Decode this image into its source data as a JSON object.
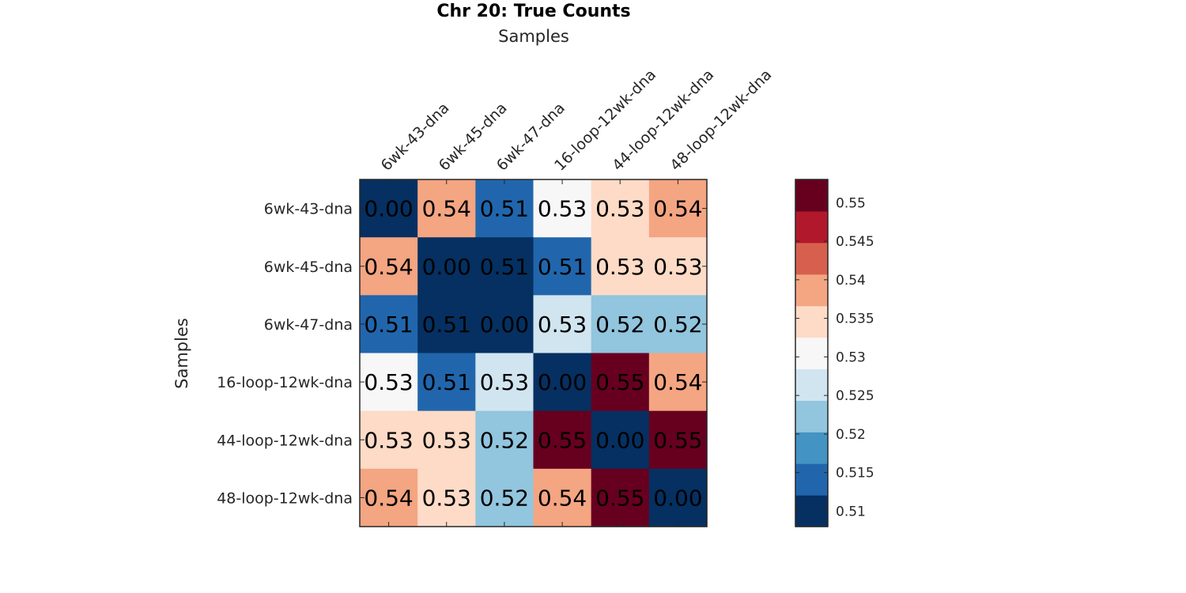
{
  "chart_data": {
    "type": "heatmap",
    "title": "Chr 20: True Counts",
    "xlabel": "Samples",
    "ylabel": "Samples",
    "x_categories": [
      "6wk-43-dna",
      "6wk-45-dna",
      "6wk-47-dna",
      "16-loop-12wk-dna",
      "44-loop-12wk-dna",
      "48-loop-12wk-dna"
    ],
    "y_categories": [
      "6wk-43-dna",
      "6wk-45-dna",
      "6wk-47-dna",
      "16-loop-12wk-dna",
      "44-loop-12wk-dna",
      "48-loop-12wk-dna"
    ],
    "values": [
      [
        0.0,
        0.537,
        0.514,
        0.53,
        0.533,
        0.537
      ],
      [
        0.537,
        0.0,
        0.51,
        0.514,
        0.533,
        0.533
      ],
      [
        0.514,
        0.51,
        0.0,
        0.526,
        0.521,
        0.521
      ],
      [
        0.53,
        0.514,
        0.526,
        0.0,
        0.551,
        0.537
      ],
      [
        0.533,
        0.533,
        0.521,
        0.551,
        0.0,
        0.551
      ],
      [
        0.537,
        0.533,
        0.521,
        0.537,
        0.551,
        0.0
      ]
    ],
    "cell_labels": [
      [
        "0.00",
        "0.54",
        "0.51",
        "0.53",
        "0.53",
        "0.54"
      ],
      [
        "0.54",
        "0.00",
        "0.51",
        "0.51",
        "0.53",
        "0.53"
      ],
      [
        "0.51",
        "0.51",
        "0.00",
        "0.53",
        "0.52",
        "0.52"
      ],
      [
        "0.53",
        "0.51",
        "0.53",
        "0.00",
        "0.55",
        "0.54"
      ],
      [
        "0.53",
        "0.53",
        "0.52",
        "0.55",
        "0.00",
        "0.55"
      ],
      [
        "0.54",
        "0.53",
        "0.52",
        "0.54",
        "0.55",
        "0.00"
      ]
    ],
    "colorbar": {
      "min": 0.508,
      "max": 0.553,
      "ticks": [
        0.51,
        0.515,
        0.52,
        0.525,
        0.53,
        0.535,
        0.54,
        0.545,
        0.55
      ],
      "tick_labels": [
        "0.51",
        "0.515",
        "0.52",
        "0.525",
        "0.53",
        "0.535",
        "0.54",
        "0.545",
        "0.55"
      ],
      "colors": [
        "#053061",
        "#2166ac",
        "#4393c3",
        "#92c5de",
        "#d1e5f0",
        "#f7f7f7",
        "#fddbc7",
        "#f4a582",
        "#d6604d",
        "#b2182b",
        "#67001f"
      ]
    },
    "grid": false,
    "legend": "colorbar right"
  }
}
